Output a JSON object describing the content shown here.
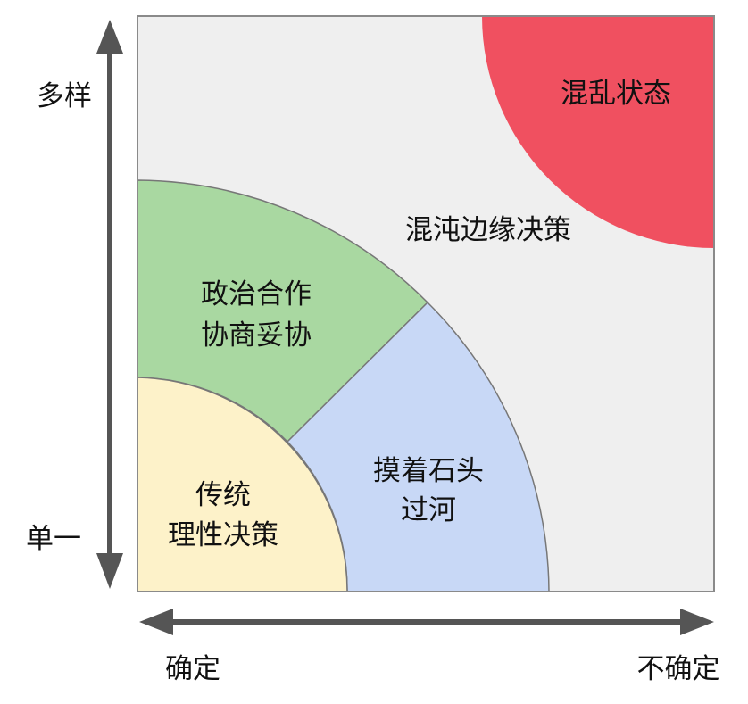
{
  "colors": {
    "background": "#efefef",
    "border": "#8a8a8a",
    "chaos": "#f05060",
    "political": "#a9d8a1",
    "trial": "#c8d8f6",
    "traditional": "#fdf2c9",
    "axis": "#555555"
  },
  "regions": {
    "chaos": {
      "label": "混乱状态"
    },
    "edge_of_chaos": {
      "label": "混沌边缘决策"
    },
    "political": {
      "lines": [
        "政治合作",
        "协商妥协"
      ]
    },
    "trial": {
      "lines": [
        "摸着石头",
        "过河"
      ]
    },
    "traditional": {
      "lines": [
        "传统",
        "理性决策"
      ]
    }
  },
  "axes": {
    "y": {
      "top_label": "多样",
      "bottom_label": "单一"
    },
    "x": {
      "left_label": "确定",
      "right_label": "不确定"
    }
  }
}
